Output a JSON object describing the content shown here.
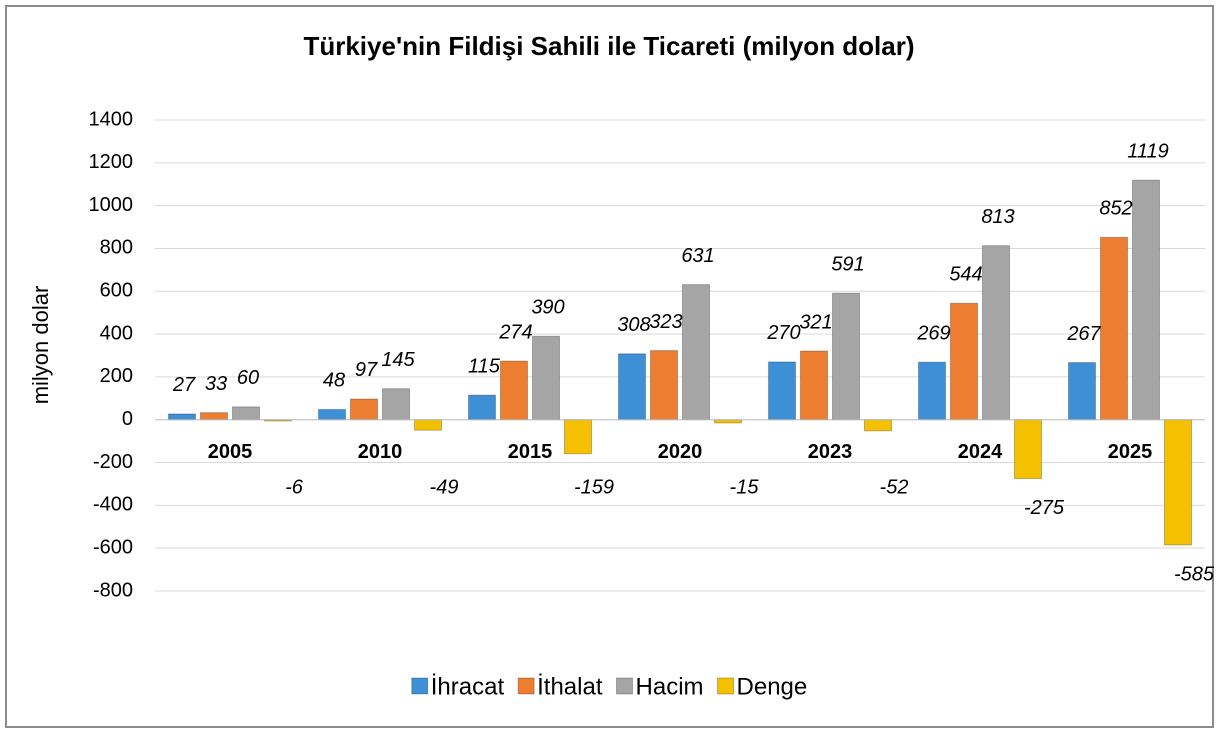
{
  "chart_data": {
    "type": "bar",
    "title": "Türkiye'nin Fildişi Sahili ile Ticareti (milyon dolar)",
    "y_label": "milyon dolar",
    "categories": [
      "2005",
      "2010",
      "2015",
      "2020",
      "2023",
      "2024",
      "2025"
    ],
    "series": [
      {
        "name": "İhracat",
        "color": "#3d8fd6",
        "values": [
          27,
          48,
          115,
          308,
          270,
          269,
          267
        ]
      },
      {
        "name": "İthalat",
        "color": "#ed7d31",
        "values": [
          33,
          97,
          274,
          323,
          321,
          544,
          852
        ]
      },
      {
        "name": "Hacim",
        "color": "#a5a5a5",
        "values": [
          60,
          145,
          390,
          631,
          591,
          813,
          1119
        ]
      },
      {
        "name": "Denge",
        "color": "#f5c000",
        "values": [
          -6,
          -49,
          -159,
          -15,
          -52,
          -275,
          -585
        ]
      }
    ],
    "ylim": [
      -800,
      1400
    ],
    "yticks": [
      -800,
      -600,
      -400,
      -200,
      0,
      200,
      400,
      600,
      800,
      1000,
      1200,
      1400
    ],
    "grid": true,
    "legend": "bottom"
  }
}
